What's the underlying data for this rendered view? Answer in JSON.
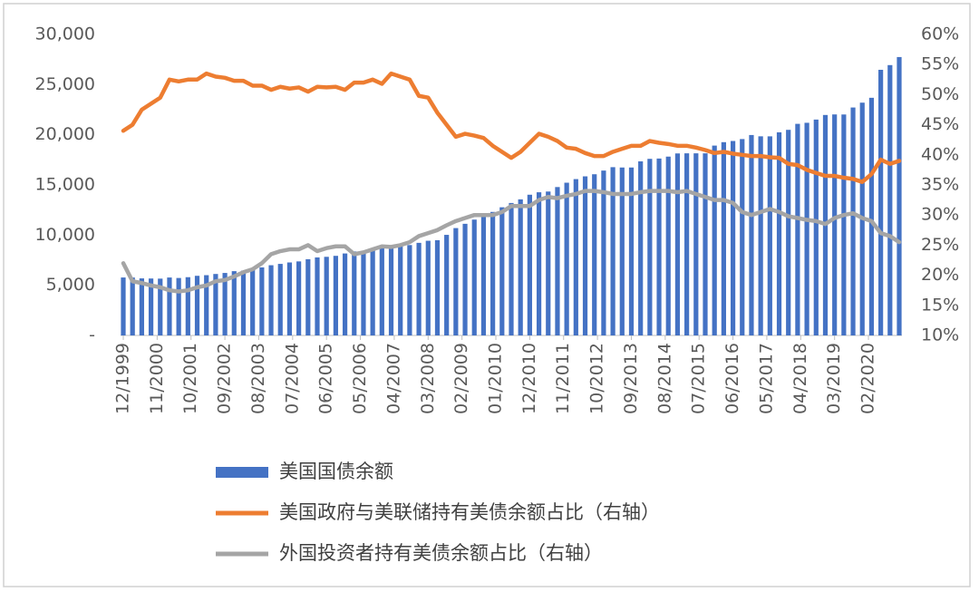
{
  "chart_data": {
    "type": "bar-line",
    "x": [
      "12/1999",
      "03/2000",
      "06/2000",
      "09/2000",
      "12/2000",
      "03/2001",
      "06/2001",
      "09/2001",
      "12/2001",
      "03/2002",
      "06/2002",
      "09/2002",
      "12/2002",
      "03/2003",
      "06/2003",
      "09/2003",
      "12/2003",
      "03/2004",
      "06/2004",
      "09/2004",
      "12/2004",
      "03/2005",
      "06/2005",
      "09/2005",
      "12/2005",
      "03/2006",
      "06/2006",
      "09/2006",
      "12/2006",
      "03/2007",
      "06/2007",
      "09/2007",
      "12/2007",
      "03/2008",
      "06/2008",
      "09/2008",
      "12/2008",
      "03/2009",
      "06/2009",
      "09/2009",
      "12/2009",
      "03/2010",
      "06/2010",
      "09/2010",
      "12/2010",
      "03/2011",
      "06/2011",
      "09/2011",
      "12/2011",
      "03/2012",
      "06/2012",
      "09/2012",
      "12/2012",
      "03/2013",
      "06/2013",
      "09/2013",
      "12/2013",
      "03/2014",
      "06/2014",
      "09/2014",
      "12/2014",
      "03/2015",
      "06/2015",
      "09/2015",
      "12/2015",
      "03/2016",
      "06/2016",
      "09/2016",
      "12/2016",
      "03/2017",
      "06/2017",
      "09/2017",
      "12/2017",
      "03/2018",
      "06/2018",
      "09/2018",
      "12/2018",
      "03/2019",
      "06/2019",
      "09/2019",
      "12/2019",
      "03/2020",
      "06/2020",
      "09/2020",
      "12/2020"
    ],
    "xticks": [
      "12/1999",
      "11/2000",
      "10/2001",
      "09/2002",
      "08/2003",
      "07/2004",
      "06/2005",
      "05/2006",
      "04/2007",
      "03/2008",
      "02/2009",
      "01/2010",
      "12/2010",
      "11/2011",
      "10/2012",
      "09/2013",
      "08/2014",
      "07/2015",
      "06/2016",
      "05/2017",
      "04/2018",
      "03/2019",
      "02/2020"
    ],
    "ylim": [
      0,
      30000
    ],
    "yticks": [
      {
        "value": 0,
        "label": "-"
      },
      {
        "value": 5000,
        "label": "5,000"
      },
      {
        "value": 10000,
        "label": "10,000"
      },
      {
        "value": 15000,
        "label": "15,000"
      },
      {
        "value": 20000,
        "label": "20,000"
      },
      {
        "value": 25000,
        "label": "25,000"
      },
      {
        "value": 30000,
        "label": "30,000"
      }
    ],
    "y2lim": [
      10,
      60
    ],
    "y2ticks": [
      {
        "value": 10,
        "label": "10%"
      },
      {
        "value": 15,
        "label": "15%"
      },
      {
        "value": 20,
        "label": "20%"
      },
      {
        "value": 25,
        "label": "25%"
      },
      {
        "value": 30,
        "label": "30%"
      },
      {
        "value": 35,
        "label": "35%"
      },
      {
        "value": 40,
        "label": "40%"
      },
      {
        "value": 45,
        "label": "45%"
      },
      {
        "value": 50,
        "label": "50%"
      },
      {
        "value": 55,
        "label": "55%"
      },
      {
        "value": 60,
        "label": "60%"
      }
    ],
    "grid": false,
    "legend": "bottom",
    "series": [
      {
        "name": "美国国债余额",
        "type": "bar",
        "color": "#4472c4",
        "values": [
          5776,
          5773,
          5686,
          5674,
          5662,
          5774,
          5727,
          5807,
          5943,
          6006,
          6126,
          6228,
          6406,
          6460,
          6670,
          6783,
          6998,
          7131,
          7274,
          7379,
          7596,
          7777,
          7836,
          7933,
          8170,
          8371,
          8420,
          8507,
          8680,
          8849,
          8868,
          9008,
          9229,
          9437,
          9492,
          10025,
          10700,
          11127,
          11545,
          11910,
          12311,
          12773,
          13202,
          13562,
          14025,
          14270,
          14343,
          14790,
          15223,
          15582,
          15856,
          16066,
          16433,
          16771,
          16738,
          16738,
          17352,
          17601,
          17632,
          17824,
          18141,
          18152,
          18152,
          18151,
          18922,
          19264,
          19382,
          19573,
          19977,
          19847,
          19845,
          20245,
          20493,
          21090,
          21195,
          21516,
          21974,
          22028,
          22023,
          22719,
          23201,
          23687,
          26477,
          26945,
          27748
        ]
      },
      {
        "name": "美国政府与美联储持有美债余额占比（右轴）",
        "type": "line",
        "axis": "y2",
        "color": "#ed7d31",
        "values": [
          44,
          45,
          47.5,
          48.5,
          49.5,
          52.5,
          52.2,
          52.5,
          52.5,
          53.5,
          53,
          52.8,
          52.3,
          52.3,
          51.5,
          51.5,
          50.8,
          51.3,
          51,
          51.2,
          50.5,
          51.3,
          51.2,
          51.3,
          50.8,
          52,
          52,
          52.5,
          51.8,
          53.5,
          53,
          52.5,
          49.8,
          49.5,
          47,
          45,
          43,
          43.5,
          43.2,
          42.8,
          41.5,
          40.5,
          39.5,
          40.5,
          42,
          43.5,
          43,
          42.3,
          41.2,
          41,
          40.3,
          39.8,
          39.8,
          40.5,
          41,
          41.5,
          41.5,
          42.3,
          42,
          41.8,
          41.5,
          41.5,
          41.2,
          40.8,
          40.3,
          40.5,
          40.2,
          40,
          39.8,
          39.8,
          39.6,
          39.5,
          38.5,
          38.3,
          37.5,
          37,
          36.5,
          36.5,
          36.2,
          36,
          35.5,
          36.8,
          39.2,
          38.5,
          39
        ]
      },
      {
        "name": "外国投资者持有美债余额占比（右轴）",
        "type": "line",
        "axis": "y2",
        "color": "#a5a5a5",
        "values": [
          22,
          19,
          18.7,
          18.3,
          18,
          17.5,
          17.3,
          17.5,
          18,
          18.3,
          19,
          19.2,
          19.8,
          20.5,
          21,
          22,
          23.5,
          24,
          24.3,
          24.3,
          25,
          24,
          24.5,
          24.8,
          24.8,
          23.5,
          23.8,
          24.3,
          24.8,
          24.7,
          25,
          25.5,
          26.5,
          27,
          27.5,
          28.3,
          29,
          29.5,
          30,
          30,
          30,
          30.5,
          31.5,
          31.5,
          31.5,
          32.5,
          33,
          32.8,
          33.2,
          33.5,
          34,
          34,
          33.8,
          33.5,
          33.5,
          33.5,
          33.8,
          34,
          34,
          34,
          33.8,
          34,
          33.5,
          33,
          32.5,
          32.5,
          32,
          30.5,
          30,
          30.5,
          31,
          30.5,
          29.8,
          29.5,
          29.2,
          29,
          28.5,
          29.5,
          30,
          30.3,
          29.5,
          29,
          27,
          26.5,
          25.5
        ]
      }
    ]
  }
}
